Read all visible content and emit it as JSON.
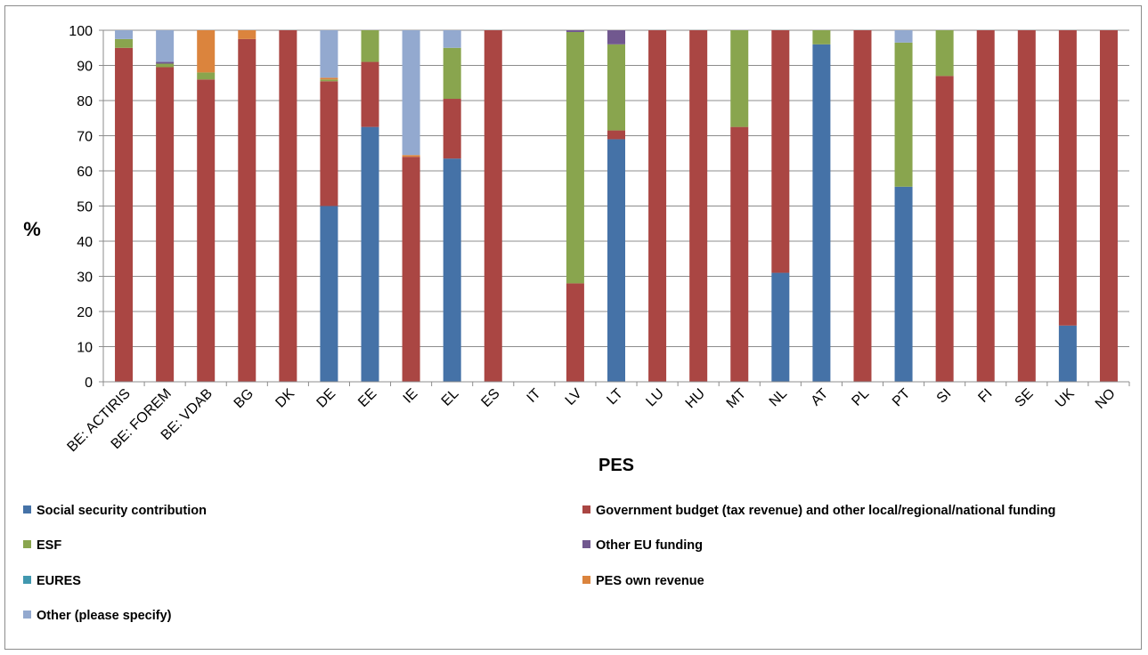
{
  "chart_data": {
    "type": "bar",
    "stacked": true,
    "xlabel": "PES",
    "ylabel": "%",
    "ylim": [
      0,
      100
    ],
    "yticks": [
      0,
      10,
      20,
      30,
      40,
      50,
      60,
      70,
      80,
      90,
      100
    ],
    "grid": true,
    "legend_position": "bottom",
    "categories": [
      "BE: ACTIRIS",
      "BE: FOREM",
      "BE: VDAB",
      "BG",
      "DK",
      "DE",
      "EE",
      "IE",
      "EL",
      "ES",
      "IT",
      "LV",
      "LT",
      "LU",
      "HU",
      "MT",
      "NL",
      "AT",
      "PL",
      "PT",
      "SI",
      "FI",
      "SE",
      "UK",
      "NO"
    ],
    "series": [
      {
        "name": "Social security contribution",
        "color": "#4572a7",
        "values": [
          0,
          0,
          0,
          0,
          0,
          50,
          72.5,
          0,
          63.5,
          0,
          0,
          0,
          69,
          0,
          0,
          0,
          31,
          96,
          0,
          55.5,
          0,
          0,
          0,
          16,
          0
        ]
      },
      {
        "name": "Government budget (tax revenue) and other local/regional/national funding",
        "color": "#aa4643",
        "values": [
          95,
          89.5,
          86,
          97.5,
          100,
          35.5,
          18.5,
          64,
          17,
          100,
          0,
          28,
          2.5,
          100,
          100,
          72.5,
          69,
          0,
          100,
          0,
          87,
          100,
          100,
          84,
          100
        ]
      },
      {
        "name": "ESF",
        "color": "#89a54e",
        "values": [
          2.5,
          1,
          2,
          0,
          0,
          0.5,
          9,
          0,
          14.5,
          0,
          0,
          71.5,
          24.5,
          0,
          0,
          27.5,
          0,
          4,
          0,
          41,
          13,
          0,
          0,
          0,
          0
        ]
      },
      {
        "name": "Other EU funding",
        "color": "#71588f",
        "values": [
          0,
          0.5,
          0,
          0,
          0,
          0,
          0,
          0,
          0,
          0,
          0,
          0.5,
          4,
          0,
          0,
          0,
          0,
          0,
          0,
          0,
          0,
          0,
          0,
          0,
          0
        ]
      },
      {
        "name": "EURES",
        "color": "#4198af",
        "values": [
          0,
          0,
          0,
          0,
          0,
          0,
          0,
          0,
          0,
          0,
          0,
          0,
          0,
          0,
          0,
          0,
          0,
          0,
          0,
          0,
          0,
          0,
          0,
          0,
          0
        ]
      },
      {
        "name": "PES own revenue",
        "color": "#db843d",
        "values": [
          0,
          0,
          12,
          2.5,
          0,
          0.5,
          0,
          0.5,
          0,
          0,
          0,
          0,
          0,
          0,
          0,
          0,
          0,
          0,
          0,
          0,
          0,
          0,
          0,
          0,
          0
        ]
      },
      {
        "name": "Other (please specify)",
        "color": "#93a9cf",
        "values": [
          2.5,
          9,
          0,
          0,
          0,
          13.5,
          0,
          35.5,
          5,
          0,
          0,
          0,
          0,
          0,
          0,
          0,
          0,
          0,
          0,
          3.5,
          0,
          0,
          0,
          0,
          0
        ]
      }
    ]
  }
}
